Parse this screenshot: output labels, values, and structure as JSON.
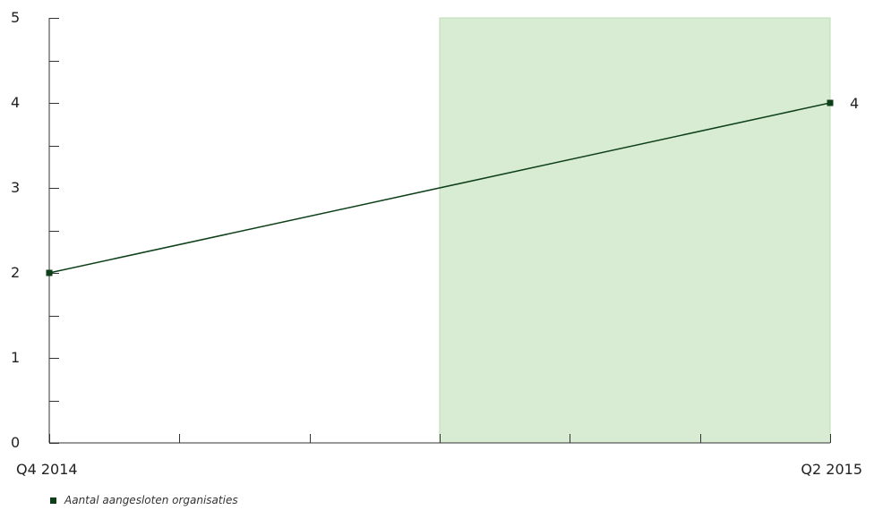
{
  "chart_data": {
    "type": "line",
    "x": [
      "Q4 2014",
      "Q2 2015"
    ],
    "x_tick_labels": [
      "Q4 2014",
      "Q2 2015"
    ],
    "y_tick_labels": [
      "0",
      "1",
      "2",
      "3",
      "4",
      "5"
    ],
    "ylim": [
      0,
      5
    ],
    "series": [
      {
        "name": "Aantal aangesloten organisaties",
        "values": [
          2,
          4
        ]
      }
    ],
    "data_labels": [
      "4"
    ],
    "highlight_region": {
      "from_fraction": 0.5,
      "to_fraction": 1.0
    },
    "grid": false,
    "legend_position": "bottom-left"
  },
  "colors": {
    "series": "#0d4019",
    "highlight": "#d8ecd3",
    "highlight_border": "#bcdcb4",
    "axis": "#333333"
  }
}
